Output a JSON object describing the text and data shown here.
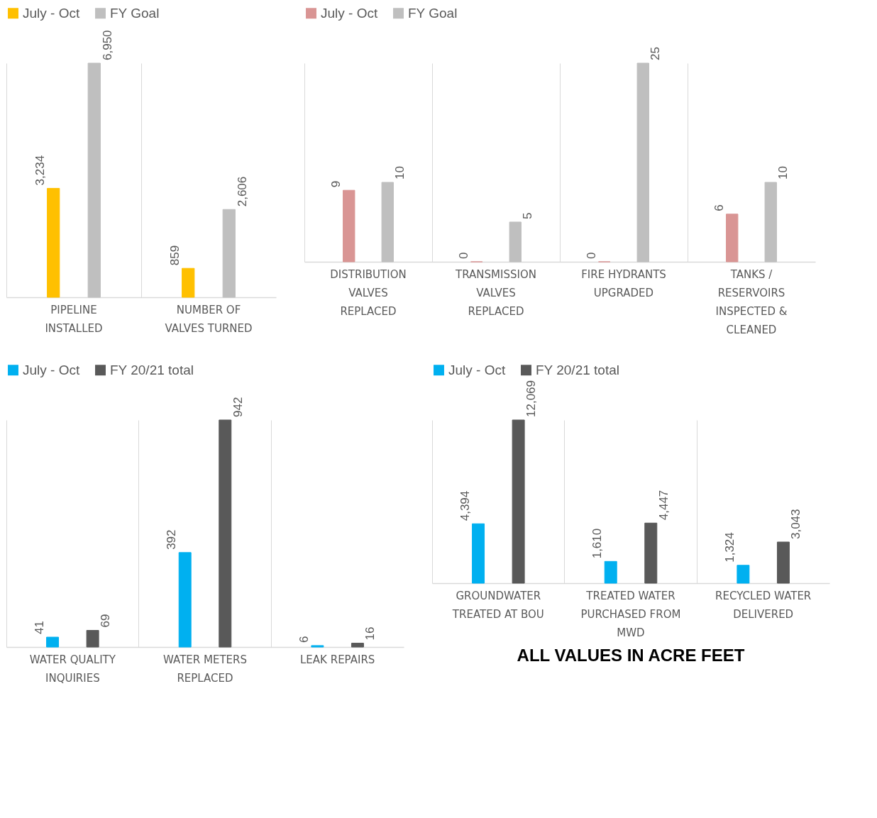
{
  "chart_data": [
    {
      "type": "bar",
      "categories": [
        "PIPELINE INSTALLED",
        "NUMBER OF VALVES TURNED"
      ],
      "series": [
        {
          "name": "July - Oct",
          "color": "#ffc000",
          "values": [
            3234,
            859
          ],
          "value_labels": [
            "3,234",
            "859"
          ]
        },
        {
          "name": "FY Goal",
          "color": "#bfbfbf",
          "values": [
            6950,
            2606
          ],
          "value_labels": [
            "6,950",
            "2,606"
          ]
        }
      ],
      "legend": "top",
      "grid": "x"
    },
    {
      "type": "bar",
      "categories": [
        "DISTRIBUTION VALVES REPLACED",
        "TRANSMISSION VALVES REPLACED",
        "FIRE HYDRANTS UPGRADED",
        "TANKS / RESERVOIRS INSPECTED & CLEANED"
      ],
      "series": [
        {
          "name": "July - Oct",
          "color": "#d99594",
          "values": [
            9,
            0,
            0,
            6
          ]
        },
        {
          "name": "FY Goal",
          "color": "#bfbfbf",
          "values": [
            10,
            5,
            25,
            10
          ]
        }
      ],
      "data_labels": true,
      "legend": "top",
      "grid": "x"
    },
    {
      "type": "bar",
      "categories": [
        "WATER QUALITY INQUIRIES",
        "WATER METERS REPLACED",
        "LEAK REPAIRS"
      ],
      "series": [
        {
          "name": "July - Oct",
          "color": "#00b0f0",
          "values": [
            41,
            392,
            6
          ]
        },
        {
          "name": "FY 20/21 total",
          "color": "#595959",
          "values": [
            69,
            942,
            16
          ]
        }
      ],
      "data_labels": true,
      "legend": "top",
      "grid": "x"
    },
    {
      "type": "bar",
      "categories": [
        "GROUNDWATER TREATED AT BOU",
        "TREATED WATER PURCHASED FROM MWD",
        "RECYCLED WATER DELIVERED"
      ],
      "series": [
        {
          "name": "July - Oct",
          "color": "#00b0f0",
          "values": [
            4394,
            1610,
            1324
          ],
          "value_labels": [
            "4,394",
            "1,610",
            "1,324"
          ]
        },
        {
          "name": "FY 20/21 total",
          "color": "#595959",
          "values": [
            12069,
            4447,
            3043
          ],
          "value_labels": [
            "12,069",
            "4,447",
            "3,043"
          ]
        }
      ],
      "legend": "top",
      "grid": "x",
      "annotations": [
        "ALL VALUES IN ACRE FEET"
      ]
    }
  ]
}
